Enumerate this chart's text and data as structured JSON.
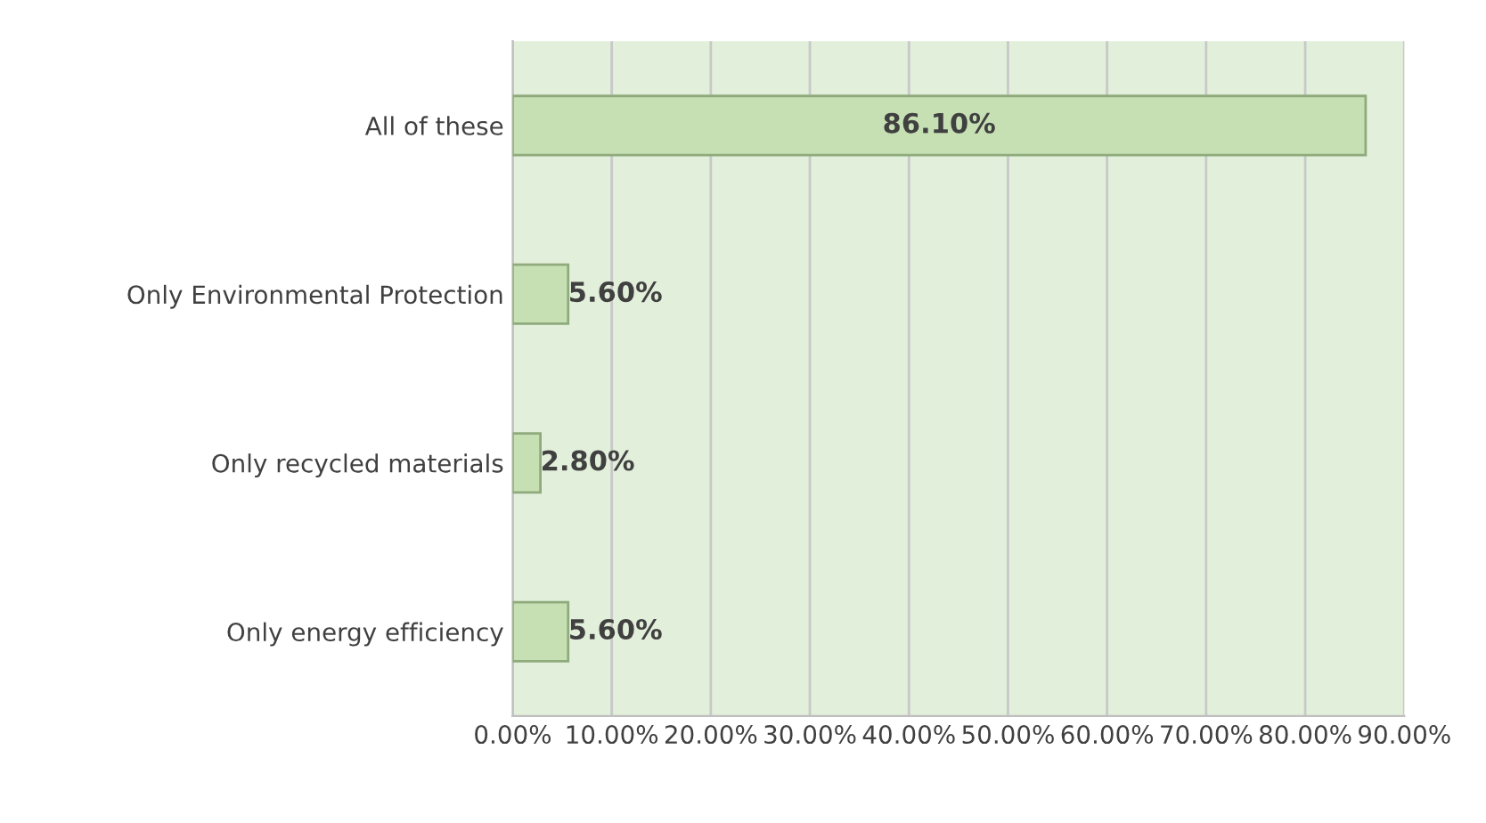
{
  "chart_data": {
    "type": "bar",
    "orientation": "horizontal",
    "categories": [
      "All of these",
      "Only Environmental Protection",
      "Only recycled materials",
      "Only energy efficiency"
    ],
    "values": [
      86.1,
      5.6,
      2.8,
      5.6
    ],
    "value_labels": [
      "86.10%",
      "5.60%",
      "2.80%",
      "5.60%"
    ],
    "color": "#c6e0b4",
    "xlim": [
      0,
      90
    ],
    "xticks": [
      {
        "value": 0,
        "label": "0.00%"
      },
      {
        "value": 10,
        "label": "10.00%"
      },
      {
        "value": 20,
        "label": "20.00%"
      },
      {
        "value": 30,
        "label": "30.00%"
      },
      {
        "value": 40,
        "label": "40.00%"
      },
      {
        "value": 50,
        "label": "50.00%"
      },
      {
        "value": 60,
        "label": "60.00%"
      },
      {
        "value": 70,
        "label": "70.00%"
      },
      {
        "value": 80,
        "label": "80.00%"
      },
      {
        "value": 90,
        "label": "90.00%"
      }
    ],
    "grid": "x"
  }
}
